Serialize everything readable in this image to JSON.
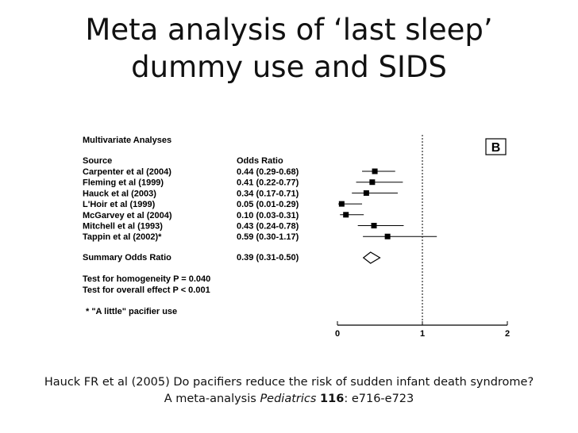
{
  "slide": {
    "title_line1": "Meta analysis of ‘last sleep’",
    "title_line2": "dummy use and  SIDS"
  },
  "citation": {
    "line1": "Hauck FR et al (2005) Do pacifiers reduce the risk of sudden infant death syndrome?",
    "line2_prefix": "A meta-analysis ",
    "journal": "Pediatrics",
    "volume": "116",
    "pages": ": e716-e723"
  },
  "chart_data": {
    "type": "forest",
    "heading": "Multivariate Analyses",
    "panel_label": "B",
    "column_headers": {
      "source": "Source",
      "odds_ratio": "Odds Ratio"
    },
    "studies": [
      {
        "source": "Carpenter et al (2004)",
        "label": "0.44 (0.29-0.68)",
        "or": 0.44,
        "lo": 0.29,
        "hi": 0.68
      },
      {
        "source": "Fleming et al (1999)",
        "label": "0.41 (0.22-0.77)",
        "or": 0.41,
        "lo": 0.22,
        "hi": 0.77
      },
      {
        "source": "Hauck et al (2003)",
        "label": "0.34 (0.17-0.71)",
        "or": 0.34,
        "lo": 0.17,
        "hi": 0.71
      },
      {
        "source": "L'Hoir et al (1999)",
        "label": "0.05 (0.01-0.29)",
        "or": 0.05,
        "lo": 0.01,
        "hi": 0.29
      },
      {
        "source": "McGarvey et al (2004)",
        "label": "0.10 (0.03-0.31)",
        "or": 0.1,
        "lo": 0.03,
        "hi": 0.31
      },
      {
        "source": "Mitchell et al (1993)",
        "label": "0.43 (0.24-0.78)",
        "or": 0.43,
        "lo": 0.24,
        "hi": 0.78
      },
      {
        "source": "Tappin et al (2002)*",
        "label": "0.59 (0.30-1.17)",
        "or": 0.59,
        "lo": 0.3,
        "hi": 1.17
      }
    ],
    "summary": {
      "source": "Summary Odds Ratio",
      "label": "0.39 (0.31-0.50)",
      "or": 0.39,
      "lo": 0.31,
      "hi": 0.5
    },
    "tests": [
      "Test for homogeneity P = 0.040",
      "Test for overall effect P < 0.001"
    ],
    "footnote": "* \"A little\" pacifier use",
    "x_ticks": [
      0,
      1,
      2
    ],
    "xlim": [
      0,
      2
    ],
    "reference_line": 1
  }
}
